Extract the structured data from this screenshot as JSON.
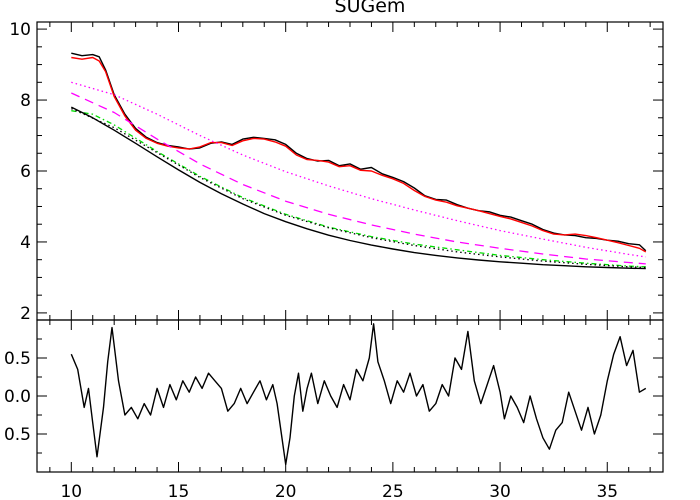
{
  "chart_data": [
    {
      "panel": "top",
      "type": "line",
      "title": "SUGem",
      "xlabel": "",
      "ylabel": "",
      "xlim": [
        8.4,
        37.6
      ],
      "ylim": [
        1.8,
        10.2
      ],
      "yticks": [
        2,
        4,
        6,
        8,
        10
      ],
      "yticklabels": [
        "2",
        "4",
        "6",
        "8",
        "10"
      ],
      "grid": false,
      "legend": "none",
      "series": [
        {
          "color": "#000000",
          "style": "solid-noisy",
          "x": [
            10.0,
            10.5,
            11.0,
            11.3,
            11.6,
            12.0,
            12.5,
            13.0,
            13.5,
            14.0,
            14.5,
            15.0,
            15.5,
            16.0,
            16.5,
            17.0,
            17.5,
            18.0,
            18.5,
            19.0,
            19.5,
            20.0,
            20.5,
            21.0,
            21.5,
            22.0,
            22.5,
            23.0,
            23.5,
            24.0,
            24.5,
            25.0,
            25.5,
            26.0,
            26.5,
            27.0,
            27.5,
            28.0,
            28.5,
            29.0,
            29.5,
            30.0,
            30.5,
            31.0,
            31.5,
            32.0,
            32.5,
            33.0,
            33.5,
            34.0,
            34.5,
            35.0,
            35.5,
            36.0,
            36.5,
            36.8
          ],
          "y": [
            9.32,
            9.25,
            9.28,
            9.22,
            8.85,
            8.15,
            7.6,
            7.2,
            6.95,
            6.8,
            6.72,
            6.68,
            6.62,
            6.65,
            6.78,
            6.82,
            6.75,
            6.9,
            6.95,
            6.92,
            6.88,
            6.75,
            6.5,
            6.35,
            6.28,
            6.3,
            6.15,
            6.2,
            6.05,
            6.1,
            5.92,
            5.82,
            5.7,
            5.52,
            5.3,
            5.2,
            5.18,
            5.05,
            4.95,
            4.88,
            4.85,
            4.75,
            4.7,
            4.6,
            4.5,
            4.35,
            4.25,
            4.2,
            4.18,
            4.12,
            4.1,
            4.05,
            4.02,
            3.95,
            3.92,
            3.75
          ]
        },
        {
          "color": "#ff0000",
          "style": "solid",
          "x": [
            10.0,
            10.5,
            11.0,
            11.3,
            11.6,
            12.0,
            12.5,
            13.0,
            13.5,
            14.0,
            14.5,
            15.0,
            15.5,
            16.0,
            16.5,
            17.0,
            17.5,
            18.0,
            18.5,
            19.0,
            19.5,
            20.0,
            20.5,
            21.0,
            21.5,
            22.0,
            22.5,
            23.0,
            23.5,
            24.0,
            24.5,
            25.0,
            25.5,
            26.0,
            26.5,
            27.0,
            27.5,
            28.0,
            28.5,
            29.0,
            29.5,
            30.0,
            30.5,
            31.0,
            31.5,
            32.0,
            32.5,
            33.0,
            33.5,
            34.0,
            34.5,
            35.0,
            35.5,
            36.0,
            36.5,
            36.8
          ],
          "y": [
            9.2,
            9.15,
            9.2,
            9.1,
            8.8,
            8.1,
            7.55,
            7.15,
            6.92,
            6.78,
            6.7,
            6.65,
            6.62,
            6.68,
            6.8,
            6.8,
            6.72,
            6.85,
            6.92,
            6.9,
            6.82,
            6.7,
            6.45,
            6.32,
            6.3,
            6.25,
            6.12,
            6.15,
            6.02,
            6.0,
            5.88,
            5.78,
            5.65,
            5.45,
            5.28,
            5.18,
            5.12,
            5.02,
            4.95,
            4.88,
            4.8,
            4.72,
            4.65,
            4.55,
            4.45,
            4.32,
            4.22,
            4.2,
            4.22,
            4.18,
            4.12,
            4.05,
            3.98,
            3.9,
            3.82,
            3.72
          ]
        },
        {
          "color": "#ff00ff",
          "style": "dotted",
          "x": [
            10.0,
            12.0,
            14.0,
            16.0,
            18.0,
            20.0,
            22.0,
            24.0,
            26.0,
            28.0,
            30.0,
            32.0,
            34.0,
            36.0,
            36.8
          ],
          "y": [
            8.5,
            8.15,
            7.6,
            7.0,
            6.45,
            5.98,
            5.58,
            5.22,
            4.9,
            4.6,
            4.32,
            4.08,
            3.85,
            3.65,
            3.58
          ]
        },
        {
          "color": "#ff00ff",
          "style": "dashed",
          "x": [
            10.0,
            12.0,
            14.0,
            16.0,
            18.0,
            20.0,
            22.0,
            24.0,
            26.0,
            28.0,
            30.0,
            32.0,
            34.0,
            36.0,
            36.8
          ],
          "y": [
            8.2,
            7.65,
            6.9,
            6.2,
            5.62,
            5.15,
            4.78,
            4.48,
            4.22,
            4.0,
            3.82,
            3.66,
            3.52,
            3.42,
            3.38
          ]
        },
        {
          "color": "#00dd00",
          "style": "dash-dot",
          "x": [
            10.0,
            11.0,
            12.0,
            14.0,
            16.0,
            18.0,
            20.0,
            22.0,
            24.0,
            26.0,
            28.0,
            30.0,
            32.0,
            34.0,
            36.0,
            36.8
          ],
          "y": [
            7.7,
            7.6,
            7.3,
            6.55,
            5.85,
            5.25,
            4.78,
            4.42,
            4.15,
            3.94,
            3.78,
            3.62,
            3.5,
            3.4,
            3.32,
            3.3
          ]
        },
        {
          "color": "#000000",
          "style": "dotted",
          "x": [
            10.0,
            12.0,
            14.0,
            16.0,
            18.0,
            20.0,
            22.0,
            24.0,
            26.0,
            28.0,
            30.0,
            32.0,
            34.0,
            36.0,
            36.8
          ],
          "y": [
            7.76,
            7.22,
            6.52,
            5.82,
            5.22,
            4.75,
            4.4,
            4.12,
            3.9,
            3.72,
            3.58,
            3.46,
            3.37,
            3.3,
            3.28
          ]
        },
        {
          "color": "#000000",
          "style": "solid",
          "x": [
            10.0,
            11.0,
            12.0,
            13.0,
            14.0,
            15.0,
            16.0,
            17.0,
            18.0,
            19.0,
            20.0,
            21.0,
            22.0,
            23.0,
            24.0,
            25.0,
            26.0,
            27.0,
            28.0,
            29.0,
            30.0,
            31.0,
            32.0,
            33.0,
            34.0,
            35.0,
            36.0,
            36.8
          ],
          "y": [
            7.8,
            7.5,
            7.15,
            6.78,
            6.4,
            6.03,
            5.68,
            5.36,
            5.07,
            4.8,
            4.57,
            4.37,
            4.19,
            4.04,
            3.91,
            3.8,
            3.7,
            3.62,
            3.55,
            3.49,
            3.44,
            3.4,
            3.36,
            3.33,
            3.3,
            3.28,
            3.26,
            3.25
          ]
        }
      ]
    },
    {
      "panel": "bottom",
      "type": "line",
      "title": "",
      "xlabel": "",
      "ylabel": "",
      "xlim": [
        8.4,
        37.6
      ],
      "ylim": [
        -1.0,
        1.0
      ],
      "xticks": [
        10,
        15,
        20,
        25,
        30,
        35
      ],
      "xticklabels": [
        "10",
        "15",
        "20",
        "25",
        "30",
        "35"
      ],
      "yticks": [
        0.5,
        0.0,
        -0.5
      ],
      "yticklabels": [
        "0.5",
        "0.0",
        "0.5"
      ],
      "grid": false,
      "legend": "none",
      "series": [
        {
          "color": "#000000",
          "style": "solid",
          "x": [
            10.0,
            10.3,
            10.6,
            10.8,
            11.0,
            11.2,
            11.5,
            11.7,
            11.9,
            12.2,
            12.5,
            12.8,
            13.1,
            13.4,
            13.7,
            14.0,
            14.3,
            14.6,
            14.9,
            15.2,
            15.5,
            15.8,
            16.1,
            16.4,
            16.7,
            17.0,
            17.3,
            17.6,
            17.9,
            18.2,
            18.5,
            18.8,
            19.1,
            19.4,
            19.6,
            19.8,
            20.0,
            20.2,
            20.4,
            20.6,
            20.8,
            21.0,
            21.2,
            21.5,
            21.8,
            22.1,
            22.4,
            22.7,
            23.0,
            23.3,
            23.6,
            23.9,
            24.1,
            24.3,
            24.6,
            24.9,
            25.2,
            25.5,
            25.8,
            26.1,
            26.4,
            26.7,
            27.0,
            27.3,
            27.6,
            27.9,
            28.2,
            28.5,
            28.8,
            29.1,
            29.4,
            29.7,
            30.0,
            30.2,
            30.5,
            30.8,
            31.1,
            31.4,
            31.7,
            32.0,
            32.3,
            32.6,
            32.9,
            33.2,
            33.5,
            33.8,
            34.1,
            34.4,
            34.7,
            35.0,
            35.3,
            35.6,
            35.9,
            36.2,
            36.5,
            36.8
          ],
          "y": [
            0.55,
            0.35,
            -0.15,
            0.1,
            -0.35,
            -0.8,
            -0.15,
            0.45,
            0.9,
            0.2,
            -0.25,
            -0.15,
            -0.3,
            -0.1,
            -0.25,
            0.1,
            -0.15,
            0.15,
            -0.05,
            0.2,
            0.05,
            0.25,
            0.1,
            0.3,
            0.2,
            0.1,
            -0.2,
            -0.1,
            0.1,
            -0.1,
            0.05,
            0.2,
            -0.05,
            0.15,
            -0.1,
            -0.5,
            -0.9,
            -0.55,
            0.0,
            0.3,
            -0.2,
            0.1,
            0.3,
            -0.1,
            0.2,
            0.0,
            -0.15,
            0.15,
            -0.05,
            0.35,
            0.2,
            0.5,
            0.95,
            0.45,
            0.2,
            -0.1,
            0.2,
            0.05,
            0.3,
            0.0,
            0.15,
            -0.2,
            -0.1,
            0.15,
            0.0,
            0.5,
            0.35,
            0.85,
            0.2,
            -0.1,
            0.15,
            0.4,
            0.05,
            -0.3,
            0.0,
            -0.15,
            -0.35,
            0.0,
            -0.3,
            -0.55,
            -0.7,
            -0.45,
            -0.35,
            0.05,
            -0.2,
            -0.45,
            -0.15,
            -0.5,
            -0.25,
            0.2,
            0.55,
            0.78,
            0.4,
            0.6,
            0.05,
            0.1
          ]
        }
      ]
    }
  ]
}
